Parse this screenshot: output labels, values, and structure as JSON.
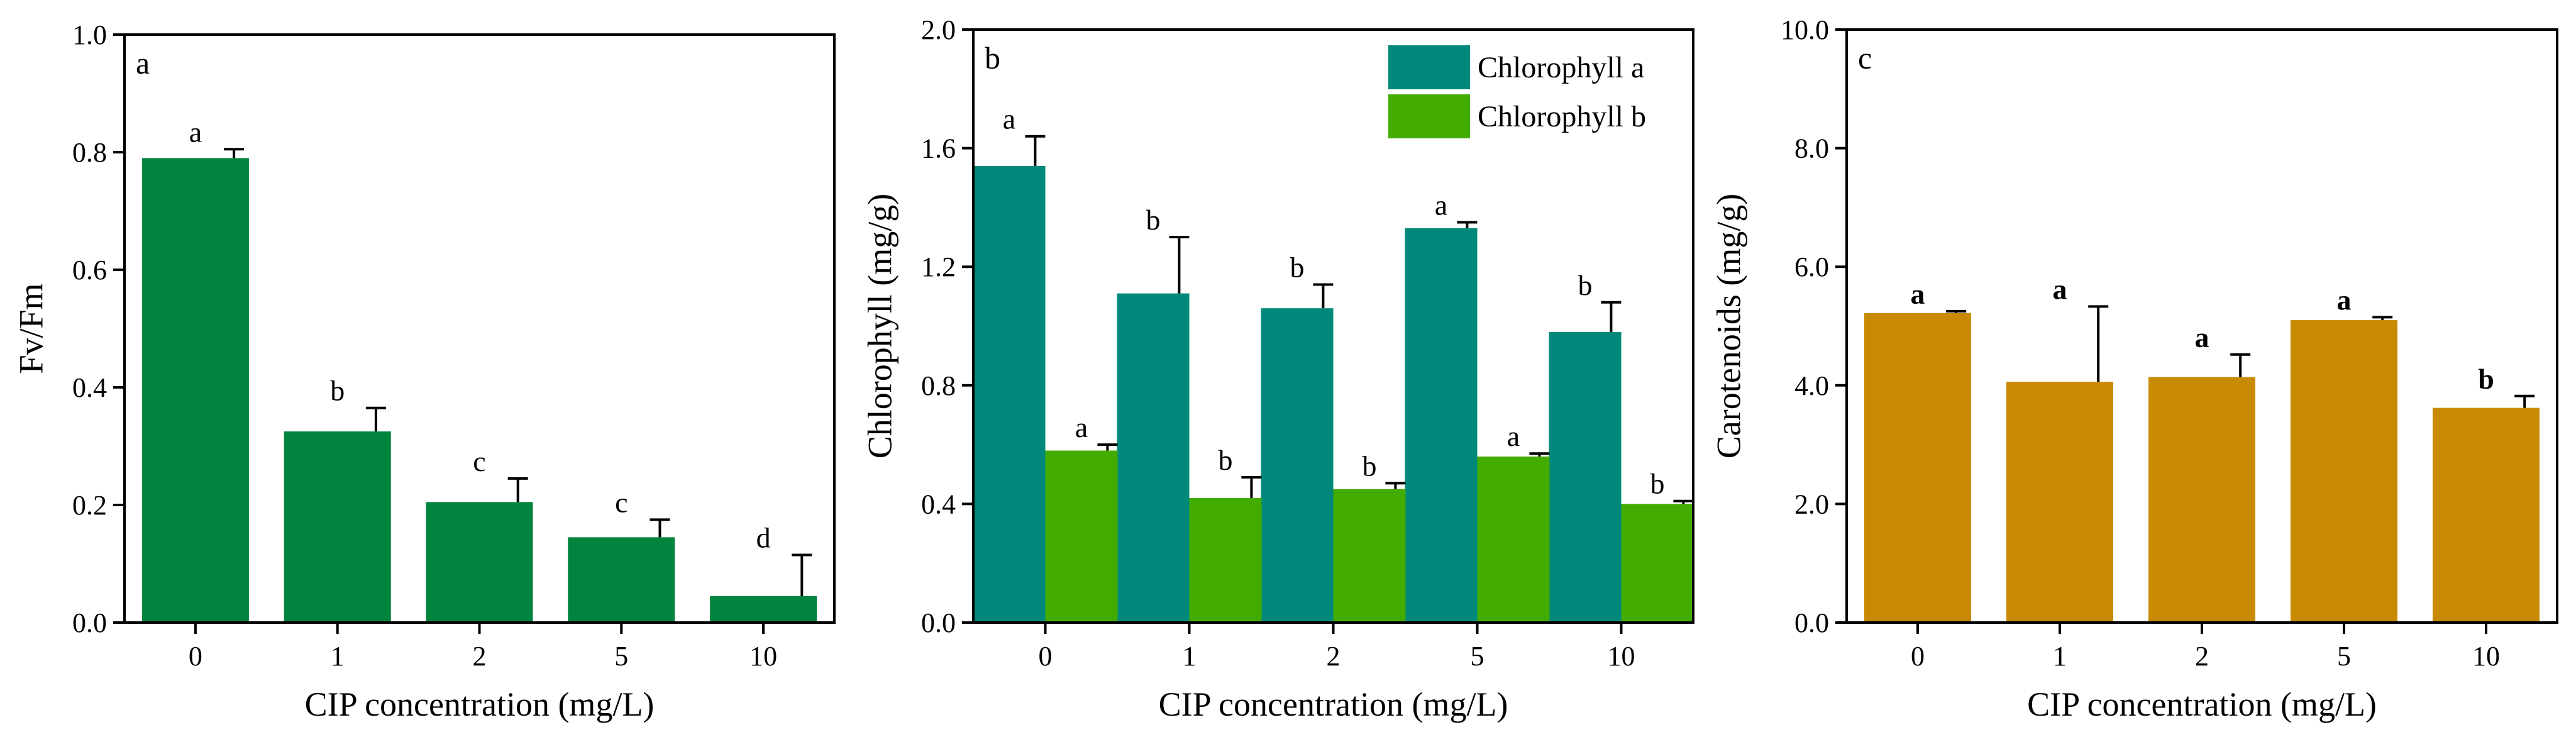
{
  "chart_data": [
    {
      "type": "bar",
      "panel": "a",
      "categories": [
        "0",
        "1",
        "2",
        "5",
        "10"
      ],
      "series": [
        {
          "name": "Fv/Fm",
          "color": "#00843e",
          "values": [
            0.79,
            0.325,
            0.205,
            0.145,
            0.045
          ],
          "errors": [
            0.015,
            0.04,
            0.04,
            0.03,
            0.07
          ],
          "letters": [
            "a",
            "b",
            "c",
            "c",
            "d"
          ]
        }
      ],
      "xlabel": "CIP concentration (mg/L)",
      "ylabel": "Fv/Fm",
      "ylim": [
        0,
        1.0
      ],
      "yticks": [
        0.0,
        0.2,
        0.4,
        0.6,
        0.8,
        1.0
      ],
      "ytick_labels": [
        "0.0",
        "0.2",
        "0.4",
        "0.6",
        "0.8",
        "1.0"
      ],
      "legend": null,
      "grid": false
    },
    {
      "type": "bar",
      "panel": "b",
      "categories": [
        "0",
        "1",
        "2",
        "5",
        "10"
      ],
      "series": [
        {
          "name": "Chlorophyll a",
          "color": "#00897b",
          "values": [
            1.54,
            1.11,
            1.06,
            1.33,
            0.98
          ],
          "errors": [
            0.1,
            0.19,
            0.08,
            0.02,
            0.1
          ],
          "letters": [
            "a",
            "b",
            "b",
            "a",
            "b"
          ]
        },
        {
          "name": "Chlorophyll b",
          "color": "#43ac00",
          "values": [
            0.58,
            0.42,
            0.45,
            0.56,
            0.4
          ],
          "errors": [
            0.02,
            0.07,
            0.02,
            0.01,
            0.01
          ],
          "letters": [
            "a",
            "b",
            "b",
            "a",
            "b"
          ]
        }
      ],
      "xlabel": "CIP concentration (mg/L)",
      "ylabel": "Chlorophyll (mg/g)",
      "ylim": [
        0,
        2.0
      ],
      "yticks": [
        0.0,
        0.4,
        0.8,
        1.2,
        1.6,
        2.0
      ],
      "ytick_labels": [
        "0.0",
        "0.4",
        "0.8",
        "1.2",
        "1.6",
        "2.0"
      ],
      "legend": [
        "Chlorophyll a",
        "Chlorophyll b"
      ],
      "legend_position": "top-right",
      "grid": false
    },
    {
      "type": "bar",
      "panel": "c",
      "categories": [
        "0",
        "1",
        "2",
        "5",
        "10"
      ],
      "series": [
        {
          "name": "Carotenoids",
          "color": "#c78a00",
          "values": [
            5.22,
            4.06,
            4.14,
            5.1,
            3.62
          ],
          "errors": [
            0.03,
            1.27,
            0.38,
            0.05,
            0.2
          ],
          "letters": [
            "a",
            "a",
            "a",
            "a",
            "b"
          ]
        }
      ],
      "xlabel": "CIP concentration (mg/L)",
      "ylabel": "Carotenoids (mg/g)",
      "ylim": [
        0,
        10.0
      ],
      "yticks": [
        0.0,
        2.0,
        4.0,
        6.0,
        8.0,
        10.0
      ],
      "ytick_labels": [
        "0.0",
        "2.0",
        "4.0",
        "6.0",
        "8.0",
        "10.0"
      ],
      "legend": null,
      "grid": false
    }
  ]
}
